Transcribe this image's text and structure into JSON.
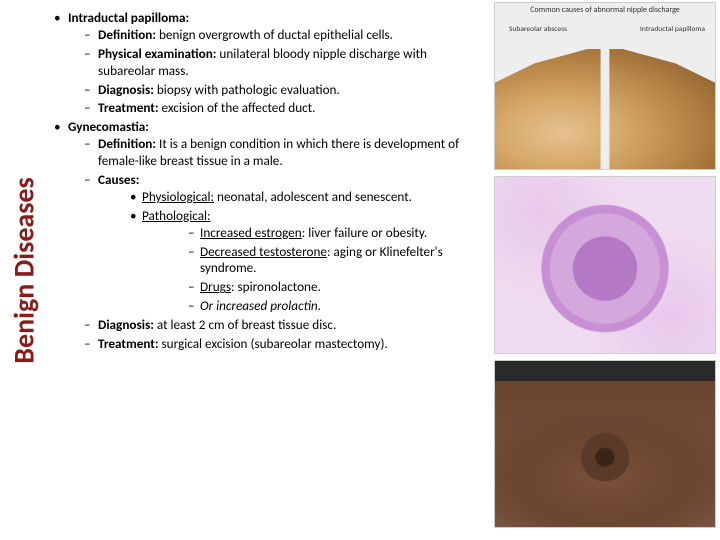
{
  "sidebar": {
    "title": "Benign Diseases",
    "title_color": "#8b1a1a"
  },
  "topics": [
    {
      "title": "Intraductal papilloma:",
      "items": [
        {
          "label": "Definition:",
          "text": " benign overgrowth of ductal epithelial cells."
        },
        {
          "label": "Physical examination:",
          "text": " unilateral bloody nipple discharge with subareolar mass."
        },
        {
          "label": "Diagnosis:",
          "text": " biopsy with pathologic evaluation."
        },
        {
          "label": "Treatment:",
          "text": " excision of the affected duct."
        }
      ]
    },
    {
      "title": "Gynecomastia:",
      "items": [
        {
          "label": "Definition:",
          "text": " It is a benign condition in which there is development of female-like breast tissue in a male."
        },
        {
          "label": "Causes:",
          "sub": [
            {
              "label_u": "Physiological:",
              "text": " neonatal, adolescent and senescent."
            },
            {
              "label_u": "Pathological:",
              "sub": [
                {
                  "label_u": "Increased estrogen",
                  "text": ": liver failure or obesity."
                },
                {
                  "label_u": "Decreased testosterone",
                  "text": ": aging or Klinefelter's syndrome."
                },
                {
                  "label_u": "Drugs",
                  "text": ": spironolactone."
                },
                {
                  "plain_i": "Or increased prolactin."
                }
              ]
            }
          ]
        },
        {
          "label": "Diagnosis:",
          "text": " at least 2 cm of breast tissue disc."
        },
        {
          "label": "Treatment:",
          "text": " surgical excision (subareolar mastectomy)."
        }
      ]
    }
  ],
  "figures": {
    "fig1": {
      "caption": "Common causes of abnormal nipple discharge",
      "left_label": "Subareolar abscess",
      "right_label": "Intraductal papilloma"
    }
  }
}
